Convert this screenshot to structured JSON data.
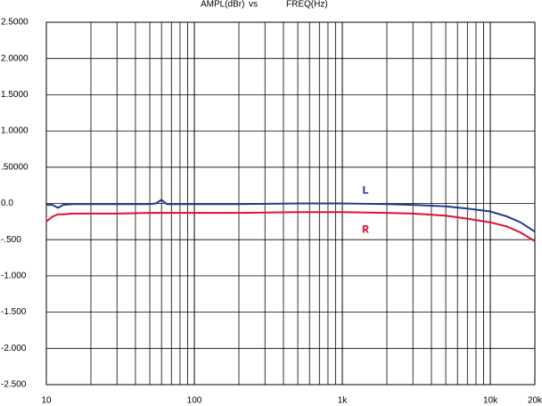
{
  "chart_data": {
    "type": "line",
    "title": [
      "AMPL(dBr)",
      "vs",
      "FREQ(Hz)"
    ],
    "xscale": "log",
    "grid": true,
    "x": [
      10,
      11,
      12,
      13,
      15,
      20,
      30,
      50,
      55,
      60,
      65,
      80,
      100,
      200,
      500,
      1000,
      2000,
      3000,
      5000,
      7000,
      10000,
      13000,
      16000,
      20000
    ],
    "series": [
      {
        "name": "L",
        "color": "#213a8f",
        "values": [
          -0.02,
          -0.02,
          -0.06,
          -0.02,
          -0.01,
          -0.01,
          -0.01,
          -0.01,
          0.0,
          0.05,
          -0.01,
          -0.01,
          -0.01,
          -0.01,
          0,
          0,
          -0.01,
          -0.02,
          -0.04,
          -0.07,
          -0.11,
          -0.18,
          -0.26,
          -0.39
        ]
      },
      {
        "name": "R",
        "color": "#e0103a",
        "values": [
          -0.25,
          -0.18,
          -0.15,
          -0.15,
          -0.14,
          -0.14,
          -0.14,
          -0.13,
          -0.13,
          -0.13,
          -0.13,
          -0.13,
          -0.13,
          -0.13,
          -0.12,
          -0.12,
          -0.13,
          -0.14,
          -0.17,
          -0.21,
          -0.26,
          -0.32,
          -0.4,
          -0.52
        ]
      }
    ],
    "xlim": [
      10,
      20000
    ],
    "xticks": [
      10,
      100,
      {
        "value": 1000,
        "label": "1k"
      },
      {
        "value": 10000,
        "label": "10k"
      },
      {
        "value": 20000,
        "label": "20k"
      }
    ],
    "ylim": [
      -2.5,
      2.5
    ],
    "yticks": [
      {
        "value": 2.5,
        "label": "2.5000"
      },
      {
        "value": 2,
        "label": "2.0000"
      },
      {
        "value": 1.5,
        "label": "1.5000"
      },
      {
        "value": 1,
        "label": "1.0000"
      },
      {
        "value": 0.5,
        "label": ".50000"
      },
      {
        "value": 0,
        "label": "0.0"
      },
      {
        "value": -0.5,
        "label": "-.500"
      },
      {
        "value": -1,
        "label": "-1.000"
      },
      {
        "value": -1.5,
        "label": "-1.500"
      },
      {
        "value": -2,
        "label": "-2.000"
      },
      {
        "value": -2.5,
        "label": "-2.500"
      }
    ]
  }
}
